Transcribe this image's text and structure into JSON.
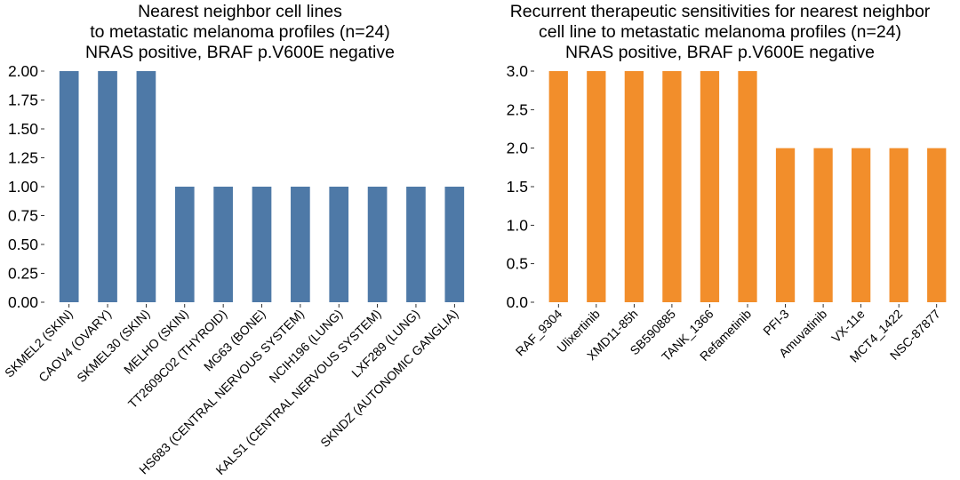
{
  "charts": [
    {
      "title_lines": [
        "Nearest neighbor cell lines",
        "to metastatic melanoma profiles (n=24)",
        "NRAS positive, BRAF p.V600E negative"
      ],
      "color": "#4e79a7"
    },
    {
      "title_lines": [
        "Recurrent therapeutic sensitivities for nearest neighbor",
        "cell line to metastatic melanoma profiles (n=24)",
        "NRAS positive, BRAF p.V600E negative"
      ],
      "color": "#f28e2b"
    }
  ],
  "chart_data": [
    {
      "type": "bar",
      "title": "Nearest neighbor cell lines\nto metastatic melanoma profiles (n=24)\nNRAS positive, BRAF p.V600E negative",
      "xlabel": "",
      "ylabel": "",
      "categories": [
        "SKMEL2 (SKIN)",
        "CAOV4 (OVARY)",
        "SKMEL30 (SKIN)",
        "MELHO (SKIN)",
        "TT2609C02 (THYROID)",
        "MG63 (BONE)",
        "HS683 (CENTRAL NERVOUS SYSTEM)",
        "NCIH196 (LUNG)",
        "KALS1 (CENTRAL NERVOUS SYSTEM)",
        "LXF289 (LUNG)",
        "SKNDZ (AUTONOMIC GANGLIA)"
      ],
      "values": [
        2,
        2,
        2,
        1,
        1,
        1,
        1,
        1,
        1,
        1,
        1
      ],
      "ylim": [
        0,
        2.0
      ],
      "yticks": [
        "0.00",
        "0.25",
        "0.50",
        "0.75",
        "1.00",
        "1.25",
        "1.50",
        "1.75",
        "2.00"
      ],
      "grid": false
    },
    {
      "type": "bar",
      "title": "Recurrent therapeutic sensitivities for nearest neighbor\ncell line to metastatic melanoma profiles (n=24)\nNRAS positive, BRAF p.V600E negative",
      "xlabel": "",
      "ylabel": "",
      "categories": [
        "RAF_9304",
        "Ulixertinib",
        "XMD11-85h",
        "SB590885",
        "TANK_1366",
        "Refametinib",
        "PFI-3",
        "Amuvatinib",
        "VX-11e",
        "MCT4_1422",
        "NSC-87877"
      ],
      "values": [
        3,
        3,
        3,
        3,
        3,
        3,
        2,
        2,
        2,
        2,
        2
      ],
      "ylim": [
        0,
        3.0
      ],
      "yticks": [
        "0.0",
        "0.5",
        "1.0",
        "1.5",
        "2.0",
        "2.5",
        "3.0"
      ],
      "grid": false
    }
  ]
}
